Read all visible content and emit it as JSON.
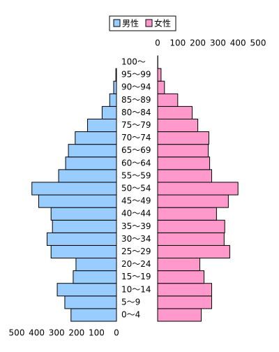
{
  "chart_data": {
    "type": "pyramid",
    "categories": [
      "0～4",
      "5～9",
      "10～14",
      "15～19",
      "20～24",
      "25～29",
      "30～34",
      "35～39",
      "40～44",
      "45～49",
      "50～54",
      "55～59",
      "60～64",
      "65～69",
      "70～74",
      "75～79",
      "80～84",
      "85～89",
      "90～94",
      "95～99",
      "100～"
    ],
    "series": [
      {
        "name": "男性",
        "color": "#99ccff",
        "side": "left",
        "values": [
          228,
          259,
          297,
          217,
          203,
          328,
          348,
          321,
          328,
          390,
          424,
          290,
          255,
          241,
          207,
          145,
          72,
          34,
          14,
          3,
          0
        ],
        "xlim": [
          0,
          500
        ],
        "xticks": [
          0,
          100,
          200,
          300,
          400,
          500
        ]
      },
      {
        "name": "女性",
        "color": "#ff99cc",
        "side": "right",
        "values": [
          217,
          269,
          269,
          231,
          210,
          359,
          331,
          334,
          293,
          352,
          400,
          269,
          259,
          252,
          255,
          200,
          172,
          100,
          34,
          17,
          1
        ],
        "xlim": [
          0,
          500
        ],
        "xticks": [
          0,
          100,
          200,
          300,
          400,
          500
        ]
      }
    ]
  }
}
